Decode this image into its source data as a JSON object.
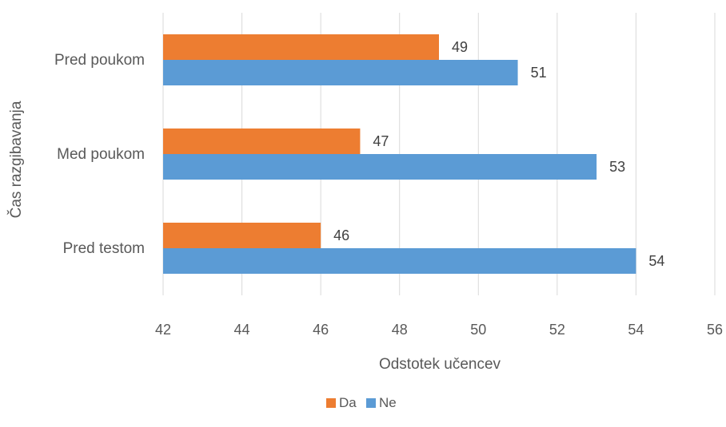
{
  "chart_data": {
    "type": "bar",
    "orientation": "horizontal",
    "categories": [
      "Pred poukom",
      "Med poukom",
      "Pred testom"
    ],
    "series": [
      {
        "name": "Da",
        "color": "#ED7D31",
        "values": [
          49,
          47,
          46
        ]
      },
      {
        "name": "Ne",
        "color": "#5B9BD5",
        "values": [
          51,
          53,
          54
        ]
      }
    ],
    "xlabel": "Odstotek učencev",
    "ylabel": "Čas razgibavanja",
    "xlim": [
      42,
      56
    ],
    "xticks": [
      42,
      44,
      46,
      48,
      50,
      52,
      54,
      56
    ],
    "grid": true,
    "legend_position": "bottom",
    "data_labels": true
  }
}
